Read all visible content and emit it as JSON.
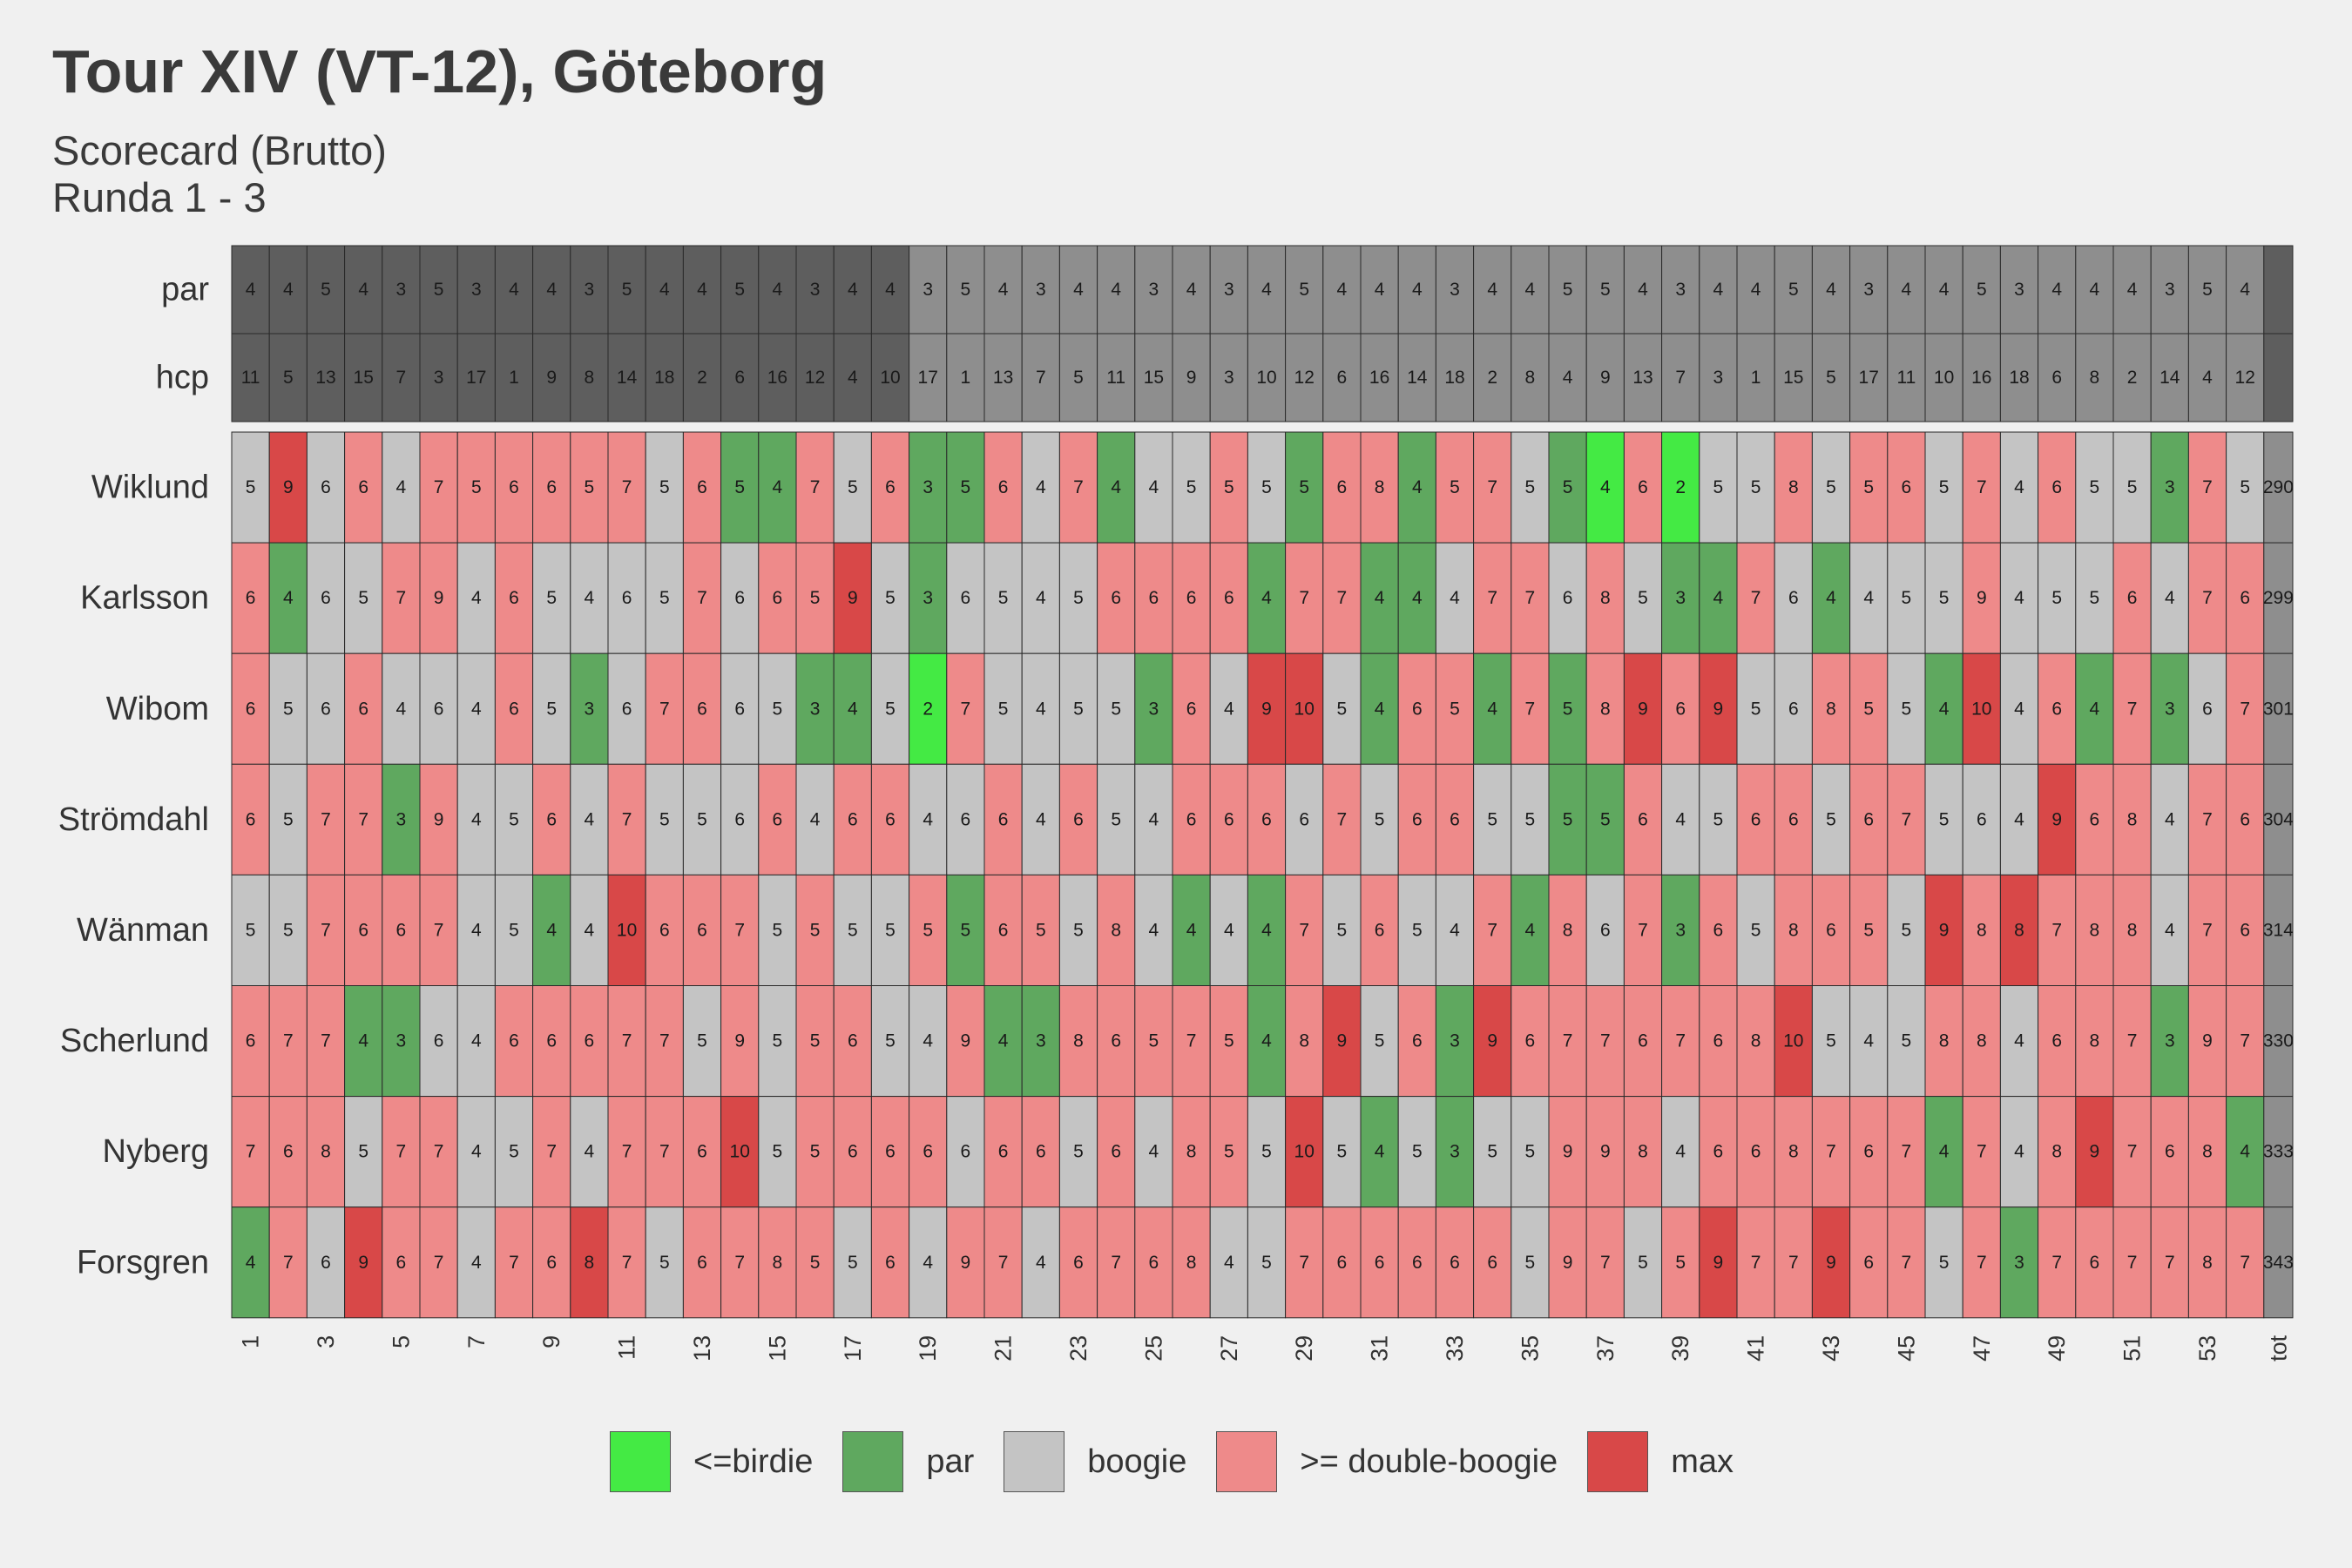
{
  "title": "Tour XIV (VT-12), Göteborg",
  "subtitle_line1": "Scorecard (Brutto)",
  "subtitle_line2": "Runda 1 - 3",
  "colors": {
    "birdie": "#44ea44",
    "par": "#5fa85f",
    "boogie": "#c4c4c4",
    "double": "#ee8a8a",
    "max": "#d84848",
    "header_dark": "#5e5e5e",
    "header_light": "#8e8e8e",
    "total": "#8e8e8e"
  },
  "legend": [
    {
      "key": "birdie",
      "label": "<=birdie"
    },
    {
      "key": "par",
      "label": "par"
    },
    {
      "key": "boogie",
      "label": "boogie"
    },
    {
      "key": "double",
      "label": ">= double-boogie"
    },
    {
      "key": "max",
      "label": "max"
    }
  ],
  "chart_data": {
    "type": "heatmap",
    "x_tick_labels": [
      "1",
      "3",
      "5",
      "7",
      "9",
      "11",
      "13",
      "15",
      "17",
      "19",
      "21",
      "23",
      "25",
      "27",
      "29",
      "31",
      "33",
      "35",
      "37",
      "39",
      "41",
      "43",
      "45",
      "47",
      "49",
      "51",
      "53",
      "tot"
    ],
    "header_rows": [
      "par",
      "hcp"
    ],
    "par": [
      4,
      4,
      5,
      4,
      3,
      5,
      3,
      4,
      4,
      3,
      5,
      4,
      4,
      5,
      4,
      3,
      4,
      4,
      3,
      5,
      4,
      3,
      4,
      4,
      3,
      4,
      3,
      4,
      5,
      4,
      4,
      4,
      3,
      4,
      4,
      5,
      5,
      4,
      3,
      4,
      4,
      5,
      4,
      3,
      4,
      4,
      5,
      3,
      4,
      4,
      4,
      3,
      5,
      4
    ],
    "hcp": [
      11,
      5,
      13,
      15,
      7,
      3,
      17,
      1,
      9,
      8,
      14,
      18,
      2,
      6,
      16,
      12,
      4,
      10,
      17,
      1,
      13,
      7,
      5,
      11,
      15,
      9,
      3,
      10,
      12,
      6,
      16,
      14,
      18,
      2,
      8,
      4,
      9,
      13,
      7,
      3,
      1,
      15,
      5,
      17,
      11,
      10,
      16,
      18,
      6,
      8,
      2,
      14,
      4,
      12
    ],
    "players": [
      {
        "name": "Wiklund",
        "total": 290,
        "scores": [
          5,
          9,
          6,
          6,
          4,
          7,
          5,
          6,
          6,
          5,
          7,
          5,
          6,
          5,
          4,
          7,
          5,
          6,
          3,
          5,
          6,
          4,
          7,
          4,
          4,
          5,
          5,
          5,
          5,
          6,
          8,
          4,
          5,
          7,
          5,
          5,
          4,
          6,
          2,
          5,
          5,
          8,
          5,
          5,
          6,
          5,
          7,
          4,
          6,
          5,
          5,
          3,
          7,
          5
        ],
        "categories": [
          "boogie",
          "max",
          "boogie",
          "double",
          "boogie",
          "double",
          "double",
          "double",
          "double",
          "double",
          "double",
          "boogie",
          "double",
          "par",
          "par",
          "double",
          "boogie",
          "double",
          "par",
          "par",
          "double",
          "boogie",
          "double",
          "par",
          "boogie",
          "boogie",
          "double",
          "boogie",
          "par",
          "double",
          "double",
          "par",
          "double",
          "double",
          "boogie",
          "par",
          "birdie",
          "double",
          "birdie",
          "boogie",
          "boogie",
          "double",
          "boogie",
          "double",
          "double",
          "boogie",
          "double",
          "boogie",
          "double",
          "boogie",
          "boogie",
          "par",
          "double",
          "boogie"
        ]
      },
      {
        "name": "Karlsson",
        "total": 299,
        "scores": [
          6,
          4,
          6,
          5,
          7,
          9,
          4,
          6,
          5,
          4,
          6,
          5,
          7,
          6,
          6,
          5,
          9,
          5,
          3,
          6,
          5,
          4,
          5,
          6,
          6,
          6,
          6,
          4,
          7,
          7,
          4,
          4,
          4,
          7,
          7,
          6,
          8,
          5,
          3,
          4,
          7,
          6,
          4,
          4,
          5,
          5,
          9,
          4,
          5,
          5,
          6,
          4,
          7,
          6
        ],
        "categories": [
          "double",
          "par",
          "boogie",
          "boogie",
          "double",
          "double",
          "boogie",
          "double",
          "boogie",
          "boogie",
          "boogie",
          "boogie",
          "double",
          "boogie",
          "double",
          "double",
          "max",
          "boogie",
          "par",
          "boogie",
          "boogie",
          "boogie",
          "boogie",
          "double",
          "double",
          "double",
          "double",
          "par",
          "double",
          "double",
          "par",
          "par",
          "boogie",
          "double",
          "double",
          "boogie",
          "double",
          "boogie",
          "par",
          "par",
          "double",
          "boogie",
          "par",
          "boogie",
          "boogie",
          "boogie",
          "double",
          "boogie",
          "boogie",
          "boogie",
          "double",
          "boogie",
          "double",
          "double"
        ]
      },
      {
        "name": "Wibom",
        "total": 301,
        "scores": [
          6,
          5,
          6,
          6,
          4,
          6,
          4,
          6,
          5,
          3,
          6,
          7,
          6,
          6,
          5,
          3,
          4,
          5,
          2,
          7,
          5,
          4,
          5,
          5,
          3,
          6,
          4,
          9,
          10,
          5,
          4,
          6,
          5,
          4,
          7,
          5,
          8,
          9,
          6,
          9,
          5,
          6,
          8,
          5,
          5,
          4,
          10,
          4,
          6,
          4,
          7,
          3,
          6,
          7
        ],
        "categories": [
          "double",
          "boogie",
          "boogie",
          "double",
          "boogie",
          "boogie",
          "boogie",
          "double",
          "boogie",
          "par",
          "boogie",
          "double",
          "double",
          "boogie",
          "boogie",
          "par",
          "par",
          "boogie",
          "birdie",
          "double",
          "boogie",
          "boogie",
          "boogie",
          "boogie",
          "par",
          "double",
          "boogie",
          "max",
          "max",
          "boogie",
          "par",
          "double",
          "double",
          "par",
          "double",
          "par",
          "double",
          "max",
          "double",
          "max",
          "boogie",
          "boogie",
          "double",
          "double",
          "boogie",
          "par",
          "max",
          "boogie",
          "double",
          "par",
          "double",
          "par",
          "boogie",
          "double"
        ]
      },
      {
        "name": "Strömdahl",
        "total": 304,
        "scores": [
          6,
          5,
          7,
          7,
          3,
          9,
          4,
          5,
          6,
          4,
          7,
          5,
          5,
          6,
          6,
          4,
          6,
          6,
          4,
          6,
          6,
          4,
          6,
          5,
          4,
          6,
          6,
          6,
          6,
          7,
          5,
          6,
          6,
          5,
          5,
          5,
          5,
          6,
          4,
          5,
          6,
          6,
          5,
          6,
          7,
          5,
          6,
          4,
          9,
          6,
          8,
          4,
          7,
          6
        ],
        "categories": [
          "double",
          "boogie",
          "double",
          "double",
          "par",
          "double",
          "boogie",
          "boogie",
          "double",
          "boogie",
          "double",
          "boogie",
          "boogie",
          "boogie",
          "double",
          "boogie",
          "double",
          "double",
          "boogie",
          "boogie",
          "double",
          "boogie",
          "double",
          "boogie",
          "boogie",
          "double",
          "double",
          "double",
          "boogie",
          "double",
          "boogie",
          "double",
          "double",
          "boogie",
          "boogie",
          "par",
          "par",
          "double",
          "boogie",
          "boogie",
          "double",
          "double",
          "boogie",
          "double",
          "double",
          "boogie",
          "boogie",
          "boogie",
          "max",
          "double",
          "double",
          "boogie",
          "double",
          "double"
        ]
      },
      {
        "name": "Wänman",
        "total": 314,
        "scores": [
          5,
          5,
          7,
          6,
          6,
          7,
          4,
          5,
          4,
          4,
          10,
          6,
          6,
          7,
          5,
          5,
          5,
          5,
          5,
          5,
          6,
          5,
          5,
          8,
          4,
          4,
          4,
          4,
          7,
          5,
          6,
          5,
          4,
          7,
          4,
          8,
          6,
          7,
          3,
          6,
          5,
          8,
          6,
          5,
          5,
          9,
          8,
          8,
          7,
          8,
          8,
          4,
          7,
          6
        ],
        "categories": [
          "boogie",
          "boogie",
          "double",
          "double",
          "double",
          "double",
          "boogie",
          "boogie",
          "par",
          "boogie",
          "max",
          "double",
          "double",
          "double",
          "boogie",
          "double",
          "boogie",
          "boogie",
          "double",
          "par",
          "double",
          "double",
          "boogie",
          "double",
          "boogie",
          "par",
          "boogie",
          "par",
          "double",
          "boogie",
          "double",
          "boogie",
          "boogie",
          "double",
          "par",
          "double",
          "boogie",
          "double",
          "par",
          "double",
          "boogie",
          "double",
          "double",
          "double",
          "boogie",
          "max",
          "double",
          "max",
          "double",
          "double",
          "double",
          "boogie",
          "double",
          "double"
        ]
      },
      {
        "name": "Scherlund",
        "total": 330,
        "scores": [
          6,
          7,
          7,
          4,
          3,
          6,
          4,
          6,
          6,
          6,
          7,
          7,
          5,
          9,
          5,
          5,
          6,
          5,
          4,
          9,
          4,
          3,
          8,
          6,
          5,
          7,
          5,
          4,
          8,
          9,
          5,
          6,
          3,
          9,
          6,
          7,
          7,
          6,
          7,
          6,
          8,
          10,
          5,
          4,
          5,
          8,
          8,
          4,
          6,
          8,
          7,
          3,
          9,
          7
        ],
        "categories": [
          "double",
          "double",
          "double",
          "par",
          "par",
          "boogie",
          "boogie",
          "double",
          "double",
          "double",
          "double",
          "double",
          "boogie",
          "double",
          "boogie",
          "double",
          "double",
          "boogie",
          "boogie",
          "double",
          "par",
          "par",
          "double",
          "double",
          "double",
          "double",
          "double",
          "par",
          "double",
          "max",
          "boogie",
          "double",
          "par",
          "max",
          "double",
          "double",
          "double",
          "double",
          "double",
          "double",
          "double",
          "max",
          "boogie",
          "boogie",
          "boogie",
          "double",
          "double",
          "boogie",
          "double",
          "double",
          "double",
          "par",
          "double",
          "double"
        ]
      },
      {
        "name": "Nyberg",
        "total": 333,
        "scores": [
          7,
          6,
          8,
          5,
          7,
          7,
          4,
          5,
          7,
          4,
          7,
          7,
          6,
          10,
          5,
          5,
          6,
          6,
          6,
          6,
          6,
          6,
          5,
          6,
          4,
          8,
          5,
          5,
          10,
          5,
          4,
          5,
          3,
          5,
          5,
          9,
          9,
          8,
          4,
          6,
          6,
          8,
          7,
          6,
          7,
          4,
          7,
          4,
          8,
          9,
          7,
          6,
          8,
          4
        ],
        "categories": [
          "double",
          "double",
          "double",
          "boogie",
          "double",
          "double",
          "boogie",
          "boogie",
          "double",
          "boogie",
          "double",
          "double",
          "double",
          "max",
          "boogie",
          "double",
          "double",
          "double",
          "double",
          "boogie",
          "double",
          "double",
          "boogie",
          "double",
          "boogie",
          "double",
          "double",
          "boogie",
          "max",
          "boogie",
          "par",
          "boogie",
          "par",
          "boogie",
          "boogie",
          "double",
          "double",
          "double",
          "boogie",
          "double",
          "double",
          "double",
          "double",
          "double",
          "double",
          "par",
          "double",
          "boogie",
          "double",
          "max",
          "double",
          "double",
          "double",
          "par"
        ]
      },
      {
        "name": "Forsgren",
        "total": 343,
        "scores": [
          4,
          7,
          6,
          9,
          6,
          7,
          4,
          7,
          6,
          8,
          7,
          5,
          6,
          7,
          8,
          5,
          5,
          6,
          4,
          9,
          7,
          4,
          6,
          7,
          6,
          8,
          4,
          5,
          7,
          6,
          6,
          6,
          6,
          6,
          5,
          9,
          7,
          5,
          5,
          9,
          7,
          7,
          9,
          6,
          7,
          5,
          7,
          3,
          7,
          6,
          7,
          7,
          8,
          7
        ],
        "categories": [
          "par",
          "double",
          "boogie",
          "max",
          "double",
          "double",
          "boogie",
          "double",
          "double",
          "max",
          "double",
          "boogie",
          "double",
          "double",
          "double",
          "double",
          "boogie",
          "double",
          "boogie",
          "double",
          "double",
          "boogie",
          "double",
          "double",
          "double",
          "double",
          "boogie",
          "boogie",
          "double",
          "double",
          "double",
          "double",
          "double",
          "double",
          "boogie",
          "double",
          "double",
          "boogie",
          "double",
          "max",
          "double",
          "double",
          "max",
          "double",
          "double",
          "boogie",
          "double",
          "par",
          "double",
          "double",
          "double",
          "double",
          "double",
          "double"
        ]
      }
    ]
  }
}
